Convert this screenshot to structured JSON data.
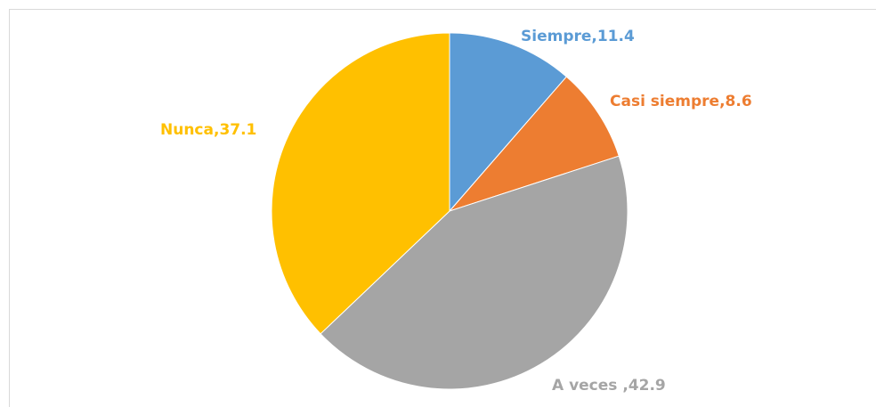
{
  "chart_data": {
    "type": "pie",
    "values": [
      11.4,
      8.6,
      42.9,
      37.1
    ],
    "value_labels": [
      "Siempre,11.4",
      "Casi siempre,8.6",
      "A veces ,42.9",
      "Nunca,37.1"
    ],
    "colors": [
      "#5b9bd5",
      "#ed7d31",
      "#a5a5a5",
      "#ffc000"
    ]
  }
}
